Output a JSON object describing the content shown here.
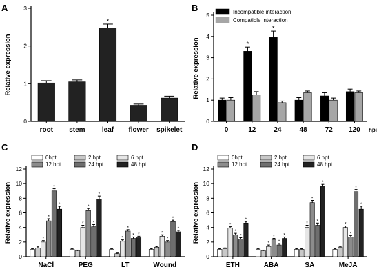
{
  "figure": {
    "panel_letters": [
      "A",
      "B",
      "C",
      "D"
    ]
  },
  "chart_data": [
    {
      "panel": "A",
      "type": "bar",
      "categories": [
        "root",
        "stem",
        "leaf",
        "flower",
        "spikelet"
      ],
      "series": [
        {
          "values": [
            1.02,
            1.05,
            2.48,
            0.43,
            0.62
          ],
          "errors": [
            0.06,
            0.05,
            0.1,
            0.03,
            0.05
          ],
          "stars": [
            false,
            false,
            true,
            false,
            false
          ],
          "color": "#222222"
        }
      ],
      "ylabel": "Relative expression",
      "ylim": [
        0,
        3
      ],
      "yticks": [
        "0",
        "1",
        "2",
        "3"
      ],
      "grid": false
    },
    {
      "panel": "B",
      "type": "bar",
      "categories": [
        "0",
        "12",
        "24",
        "48",
        "72",
        "120"
      ],
      "xunit": "hpi",
      "series": [
        {
          "name": "Incompatible interaction",
          "color": "#000000",
          "values": [
            1.0,
            3.3,
            3.95,
            1.0,
            1.2,
            1.4
          ],
          "errors": [
            0.1,
            0.2,
            0.3,
            0.12,
            0.15,
            0.12
          ],
          "stars": [
            false,
            true,
            true,
            false,
            false,
            false
          ]
        },
        {
          "name": "Compatible interaction",
          "color": "#a6a6a6",
          "values": [
            1.0,
            1.25,
            0.88,
            1.35,
            1.0,
            1.35
          ],
          "errors": [
            0.12,
            0.15,
            0.08,
            0.08,
            0.1,
            0.08
          ],
          "stars": [
            false,
            false,
            false,
            false,
            false,
            false
          ]
        }
      ],
      "ylabel": "Relative expression",
      "ylim": [
        0,
        5
      ],
      "yticks": [
        "0",
        "1",
        "2",
        "3",
        "4",
        "5"
      ],
      "legend": "top-left",
      "grid": false
    },
    {
      "panel": "C",
      "type": "bar",
      "categories": [
        "NaCl",
        "PEG",
        "LT",
        "Wound"
      ],
      "series": [
        {
          "name": "0hpt",
          "color": "#ffffff",
          "values": [
            1.0,
            1.0,
            1.0,
            1.0
          ],
          "errors": [
            0.1,
            0.1,
            0.1,
            0.1
          ],
          "stars": [
            false,
            false,
            false,
            false
          ]
        },
        {
          "name": "2 hpt",
          "color": "#c8c8c8",
          "values": [
            1.2,
            0.8,
            0.4,
            1.3
          ],
          "errors": [
            0.15,
            0.1,
            0.1,
            0.1
          ],
          "stars": [
            false,
            false,
            false,
            false
          ]
        },
        {
          "name": "6 hpt",
          "color": "#e6e6e6",
          "values": [
            2.0,
            4.0,
            2.1,
            2.8
          ],
          "errors": [
            0.2,
            0.3,
            0.2,
            0.2
          ],
          "stars": [
            true,
            true,
            true,
            true
          ]
        },
        {
          "name": "12 hpt",
          "color": "#8c8c8c",
          "values": [
            4.9,
            6.3,
            3.5,
            2.0
          ],
          "errors": [
            0.3,
            0.3,
            0.2,
            0.2
          ],
          "stars": [
            true,
            true,
            true,
            true
          ]
        },
        {
          "name": "24 hpt",
          "color": "#6e6e6e",
          "values": [
            9.0,
            4.1,
            2.5,
            4.8
          ],
          "errors": [
            0.3,
            0.3,
            0.2,
            0.2
          ],
          "stars": [
            true,
            true,
            true,
            true
          ]
        },
        {
          "name": "48 hpt",
          "color": "#222222",
          "values": [
            6.5,
            7.9,
            2.6,
            3.4
          ],
          "errors": [
            0.4,
            0.4,
            0.2,
            0.2
          ],
          "stars": [
            true,
            true,
            true,
            true
          ]
        }
      ],
      "ylabel": "Relative expression",
      "ylim": [
        0,
        12
      ],
      "yticks": [
        "0",
        "2",
        "4",
        "6",
        "8",
        "10",
        "12"
      ],
      "legend": "top",
      "grid": false
    },
    {
      "panel": "D",
      "type": "bar",
      "categories": [
        "ETH",
        "ABA",
        "SA",
        "MeJA"
      ],
      "series": [
        {
          "name": "0hpt",
          "color": "#ffffff",
          "values": [
            1.0,
            1.0,
            1.0,
            1.0
          ],
          "errors": [
            0.1,
            0.1,
            0.1,
            0.1
          ],
          "stars": [
            false,
            false,
            false,
            false
          ]
        },
        {
          "name": "2 hpt",
          "color": "#c8c8c8",
          "values": [
            1.1,
            0.8,
            1.0,
            1.3
          ],
          "errors": [
            0.1,
            0.1,
            0.1,
            0.1
          ],
          "stars": [
            false,
            false,
            false,
            false
          ]
        },
        {
          "name": "6 hpt",
          "color": "#e6e6e6",
          "values": [
            3.9,
            1.4,
            4.0,
            4.0
          ],
          "errors": [
            0.2,
            0.2,
            0.3,
            0.2
          ],
          "stars": [
            true,
            true,
            true,
            true
          ]
        },
        {
          "name": "12 hpt",
          "color": "#8c8c8c",
          "values": [
            3.0,
            2.3,
            7.4,
            2.7
          ],
          "errors": [
            0.2,
            0.2,
            0.3,
            0.2
          ],
          "stars": [
            true,
            true,
            true,
            true
          ]
        },
        {
          "name": "24 hpt",
          "color": "#6e6e6e",
          "values": [
            2.4,
            1.6,
            4.3,
            8.9
          ],
          "errors": [
            0.2,
            0.2,
            0.3,
            0.3
          ],
          "stars": [
            true,
            true,
            true,
            true
          ]
        },
        {
          "name": "48 hpt",
          "color": "#222222",
          "values": [
            4.6,
            2.5,
            9.6,
            6.5
          ],
          "errors": [
            0.2,
            0.2,
            0.3,
            0.4
          ],
          "stars": [
            true,
            true,
            true,
            true
          ]
        }
      ],
      "ylabel": "Relative expression",
      "ylim": [
        0,
        12
      ],
      "yticks": [
        "0",
        "2",
        "4",
        "6",
        "8",
        "10",
        "12"
      ],
      "legend": "top",
      "grid": false
    }
  ]
}
